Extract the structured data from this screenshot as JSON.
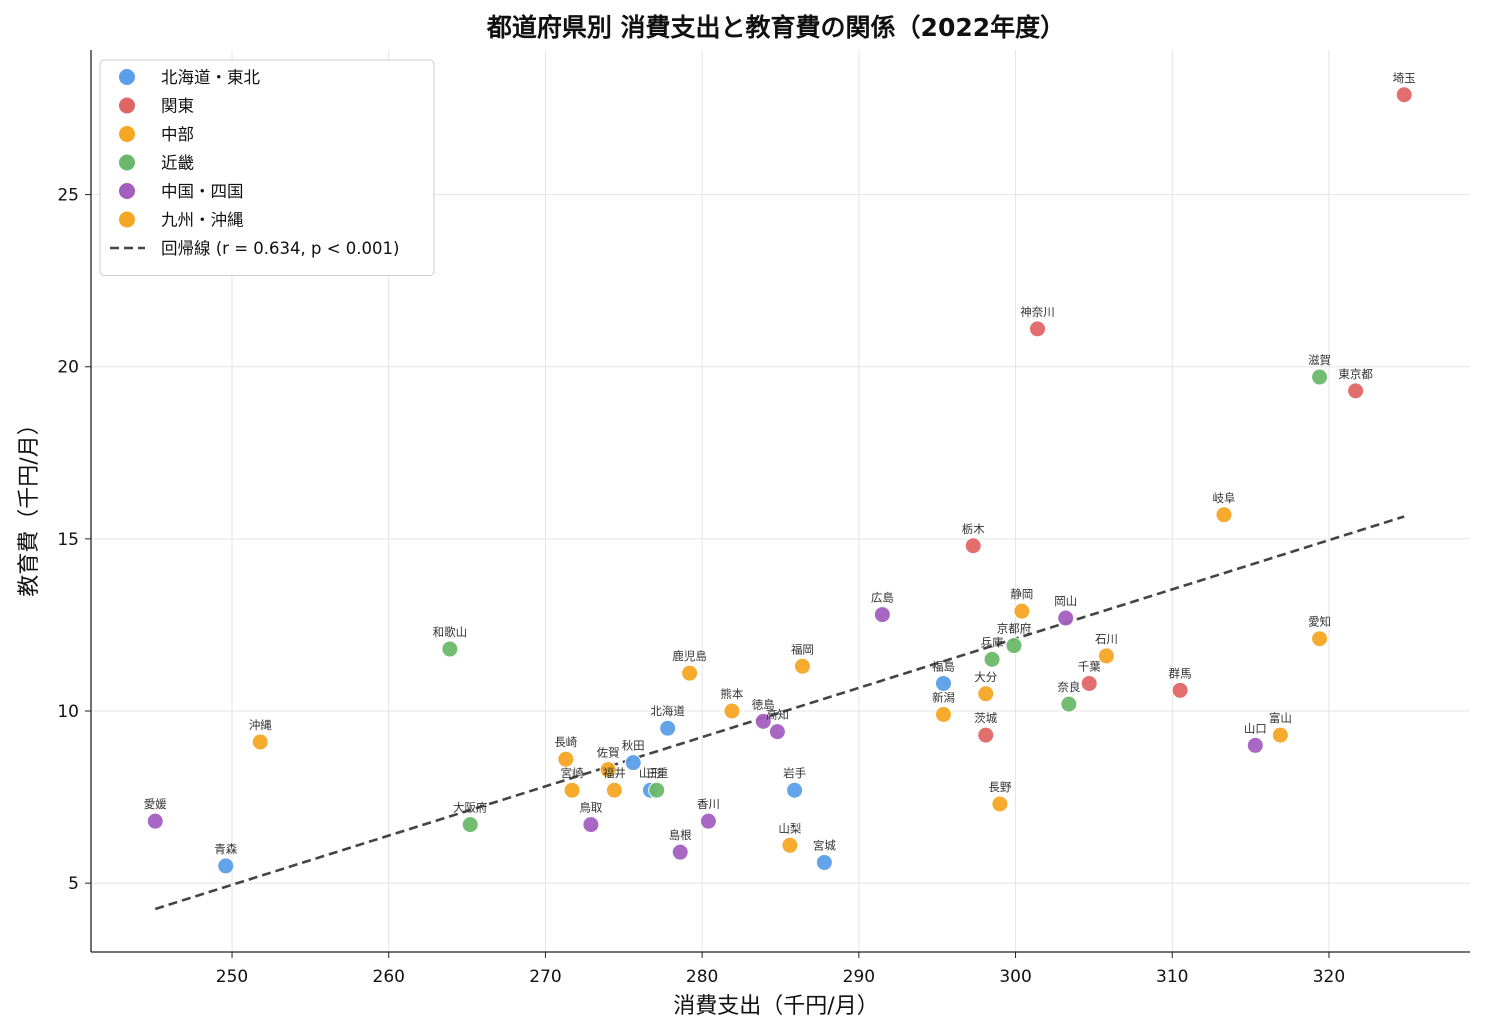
{
  "chart_data": {
    "type": "scatter",
    "title": "都道府県別 消費支出と教育費の関係（2022年度）",
    "xlabel": "消費支出（千円/月）",
    "ylabel": "教育費（千円/月）",
    "xlim": [
      241,
      329
    ],
    "ylim": [
      3,
      29.2
    ],
    "xticks": [
      250,
      260,
      270,
      280,
      290,
      300,
      310,
      320
    ],
    "yticks": [
      5,
      10,
      15,
      20,
      25
    ],
    "grid": true,
    "legend_position": "top-left",
    "series": [
      {
        "name": "北海道・東北",
        "color": "#5b9ee9",
        "points": [
          {
            "label": "北海道",
            "x": 277.8,
            "y": 9.5
          },
          {
            "label": "青森",
            "x": 249.6,
            "y": 5.5
          },
          {
            "label": "岩手",
            "x": 285.9,
            "y": 7.7
          },
          {
            "label": "宮城",
            "x": 287.8,
            "y": 5.6
          },
          {
            "label": "秋田",
            "x": 275.6,
            "y": 8.5
          },
          {
            "label": "山形",
            "x": 276.7,
            "y": 7.7
          },
          {
            "label": "福島",
            "x": 295.4,
            "y": 10.8
          }
        ]
      },
      {
        "name": "関東",
        "color": "#e06666",
        "points": [
          {
            "label": "埼玉",
            "x": 324.8,
            "y": 27.9
          },
          {
            "label": "神奈川",
            "x": 301.4,
            "y": 21.1
          },
          {
            "label": "東京都",
            "x": 321.7,
            "y": 19.3
          },
          {
            "label": "栃木",
            "x": 297.3,
            "y": 14.8
          },
          {
            "label": "千葉",
            "x": 304.7,
            "y": 10.8
          },
          {
            "label": "群馬",
            "x": 310.5,
            "y": 10.6
          },
          {
            "label": "茨城",
            "x": 298.1,
            "y": 9.3
          }
        ]
      },
      {
        "name": "中部",
        "color": "#f5a623",
        "points": [
          {
            "label": "岐阜",
            "x": 313.3,
            "y": 15.7
          },
          {
            "label": "静岡",
            "x": 300.4,
            "y": 12.9
          },
          {
            "label": "愛知",
            "x": 319.4,
            "y": 12.1
          },
          {
            "label": "石川",
            "x": 305.8,
            "y": 11.6
          },
          {
            "label": "新潟",
            "x": 295.4,
            "y": 9.9
          },
          {
            "label": "富山",
            "x": 316.9,
            "y": 9.3
          },
          {
            "label": "長野",
            "x": 299.0,
            "y": 7.3
          },
          {
            "label": "福井",
            "x": 274.4,
            "y": 7.7
          },
          {
            "label": "山梨",
            "x": 285.6,
            "y": 6.1
          }
        ]
      },
      {
        "name": "近畿",
        "color": "#6ab96a",
        "points": [
          {
            "label": "滋賀",
            "x": 319.4,
            "y": 19.7
          },
          {
            "label": "和歌山",
            "x": 263.9,
            "y": 11.8
          },
          {
            "label": "京都府",
            "x": 299.9,
            "y": 11.9
          },
          {
            "label": "兵庫",
            "x": 298.5,
            "y": 11.5
          },
          {
            "label": "奈良",
            "x": 303.4,
            "y": 10.2
          },
          {
            "label": "三重",
            "x": 277.1,
            "y": 7.7
          },
          {
            "label": "大阪府",
            "x": 265.2,
            "y": 6.7
          }
        ]
      },
      {
        "name": "中国・四国",
        "color": "#a35fbf",
        "points": [
          {
            "label": "広島",
            "x": 291.5,
            "y": 12.8
          },
          {
            "label": "岡山",
            "x": 303.2,
            "y": 12.7
          },
          {
            "label": "徳島",
            "x": 283.9,
            "y": 9.7
          },
          {
            "label": "高知",
            "x": 284.8,
            "y": 9.4
          },
          {
            "label": "山口",
            "x": 315.3,
            "y": 9.0
          },
          {
            "label": "愛媛",
            "x": 245.1,
            "y": 6.8
          },
          {
            "label": "鳥取",
            "x": 272.9,
            "y": 6.7
          },
          {
            "label": "香川",
            "x": 280.4,
            "y": 6.8
          },
          {
            "label": "島根",
            "x": 278.6,
            "y": 5.9
          }
        ]
      },
      {
        "name": "九州・沖縄",
        "color": "#f5a623",
        "points": [
          {
            "label": "鹿児島",
            "x": 279.2,
            "y": 11.1
          },
          {
            "label": "福岡",
            "x": 286.4,
            "y": 11.3
          },
          {
            "label": "熊本",
            "x": 281.9,
            "y": 10.0
          },
          {
            "label": "大分",
            "x": 298.1,
            "y": 10.5
          },
          {
            "label": "長崎",
            "x": 271.3,
            "y": 8.6
          },
          {
            "label": "佐賀",
            "x": 274.0,
            "y": 8.3
          },
          {
            "label": "宮崎",
            "x": 271.7,
            "y": 7.7
          },
          {
            "label": "沖縄",
            "x": 251.8,
            "y": 9.1
          }
        ]
      }
    ],
    "regression": {
      "name": "回帰線 (r = 0.634, p < 0.001)",
      "color": "#444444",
      "x": [
        245.1,
        324.8
      ],
      "y": [
        4.25,
        15.65
      ]
    }
  }
}
